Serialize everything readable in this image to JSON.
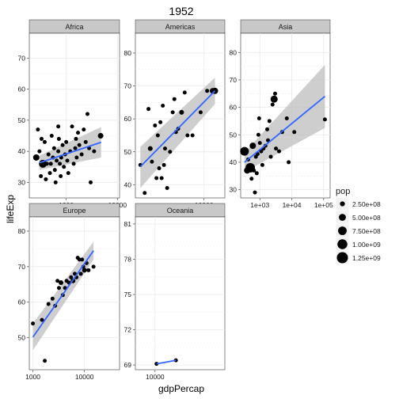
{
  "chart_data": {
    "type": "scatter",
    "title": "1952",
    "xlabel": "gdpPercap",
    "ylabel": "lifeExp",
    "x_scale": "log10",
    "grid": true,
    "legend": {
      "title": "pop",
      "placement": "right",
      "labels": [
        "2.50e+08",
        "5.00e+08",
        "7.50e+08",
        "1.00e+09",
        "1.25e+09"
      ],
      "values": [
        250000000,
        500000000,
        750000000,
        1000000000,
        1250000000
      ]
    },
    "colors": {
      "points": "#000000",
      "fit_line": "#3366FF",
      "ribbon": "#BEBEBE",
      "strip": "#C8C8C8",
      "grid": "#EBEBEB"
    },
    "panels": [
      {
        "name": "Africa",
        "xlim": [
          190,
          11000
        ],
        "ylim": [
          25,
          78
        ],
        "xticks": [
          1000,
          10000
        ],
        "xticklabels": [
          "1000",
          "10000"
        ],
        "yticks": [
          30,
          40,
          50,
          60,
          70
        ],
        "yticklabels": [
          "30",
          "40",
          "50",
          "60",
          "70"
        ],
        "fit": {
          "x": [
            300,
            4800
          ],
          "y": [
            36.3,
            42.9
          ],
          "lower": [
            34.0,
            38.0
          ],
          "upper": [
            38.6,
            47.8
          ]
        },
        "points": [
          [
            260,
            38,
            8
          ],
          [
            300,
            40,
            5
          ],
          [
            320,
            32,
            5
          ],
          [
            350,
            36,
            10
          ],
          [
            380,
            43,
            5
          ],
          [
            400,
            31,
            5
          ],
          [
            420,
            36,
            5
          ],
          [
            450,
            39,
            5
          ],
          [
            480,
            33,
            5
          ],
          [
            500,
            36,
            5
          ],
          [
            520,
            45,
            5
          ],
          [
            550,
            38,
            5
          ],
          [
            580,
            41,
            5
          ],
          [
            600,
            34,
            5
          ],
          [
            620,
            30,
            5
          ],
          [
            650,
            37,
            5
          ],
          [
            700,
            40,
            5
          ],
          [
            720,
            44,
            5
          ],
          [
            750,
            36,
            5
          ],
          [
            780,
            32,
            5
          ],
          [
            800,
            38,
            5
          ],
          [
            850,
            42,
            5
          ],
          [
            900,
            35,
            5
          ],
          [
            950,
            39,
            5
          ],
          [
            1000,
            43,
            5
          ],
          [
            1050,
            37,
            5
          ],
          [
            1100,
            33,
            5
          ],
          [
            1200,
            40,
            5
          ],
          [
            1300,
            48,
            5
          ],
          [
            1400,
            36,
            5
          ],
          [
            1500,
            41,
            5
          ],
          [
            1550,
            44,
            5
          ],
          [
            1600,
            38,
            5
          ],
          [
            1800,
            42,
            5
          ],
          [
            2000,
            39,
            5
          ],
          [
            2200,
            47,
            5
          ],
          [
            2400,
            43,
            5
          ],
          [
            2600,
            52,
            5
          ],
          [
            2800,
            41,
            5
          ],
          [
            3000,
            30,
            5
          ],
          [
            3500,
            40,
            5
          ],
          [
            4700,
            45,
            7
          ],
          [
            280,
            47,
            5
          ],
          [
            330,
            44,
            5
          ],
          [
            700,
            48,
            5
          ],
          [
            1700,
            46,
            5
          ]
        ]
      },
      {
        "name": "Americas",
        "xlim": [
          1200,
          19000
        ],
        "ylim": [
          36,
          86
        ],
        "xticks": [
          10000
        ],
        "xticklabels": [
          "10000"
        ],
        "yticks": [
          40,
          50,
          60,
          70,
          80
        ],
        "yticklabels": [
          "40",
          "50",
          "60",
          "70",
          "80"
        ],
        "fit": {
          "x": [
            1400,
            14000
          ],
          "y": [
            45.5,
            68.5
          ],
          "lower": [
            39.0,
            64.5
          ],
          "upper": [
            51.5,
            72.5
          ]
        },
        "points": [
          [
            1400,
            46,
            5
          ],
          [
            1600,
            37.5,
            5
          ],
          [
            1800,
            63,
            5
          ],
          [
            1900,
            51,
            6
          ],
          [
            2000,
            47,
            5
          ],
          [
            2200,
            58,
            5
          ],
          [
            2300,
            42,
            5
          ],
          [
            2400,
            55,
            5
          ],
          [
            2500,
            45,
            5
          ],
          [
            2600,
            59,
            5
          ],
          [
            2700,
            42,
            5
          ],
          [
            2800,
            64,
            5
          ],
          [
            2900,
            46,
            5
          ],
          [
            3000,
            51,
            5
          ],
          [
            3200,
            39,
            5
          ],
          [
            3500,
            50,
            5
          ],
          [
            3800,
            62,
            5
          ],
          [
            4000,
            66,
            5
          ],
          [
            4200,
            56,
            5
          ],
          [
            4500,
            57,
            5
          ],
          [
            5000,
            62,
            6
          ],
          [
            5500,
            68,
            5
          ],
          [
            6000,
            55,
            5
          ],
          [
            7000,
            55,
            5
          ],
          [
            9000,
            62,
            5
          ],
          [
            11000,
            68.5,
            5
          ],
          [
            13000,
            68.5,
            7
          ],
          [
            14000,
            68.5,
            8
          ]
        ]
      },
      {
        "name": "Asia",
        "xlim": [
          250,
          160000
        ],
        "ylim": [
          27,
          87
        ],
        "xticks": [
          1000,
          10000,
          100000
        ],
        "xticklabels": [
          "1e+03",
          "1e+04",
          "1e+05"
        ],
        "yticks": [
          30,
          40,
          50,
          60,
          70,
          80
        ],
        "yticklabels": [
          "30",
          "40",
          "50",
          "60",
          "70",
          "80"
        ],
        "fit": {
          "x": [
            330,
            110000
          ],
          "y": [
            40.0,
            64.0
          ],
          "lower": [
            36.5,
            52.5
          ],
          "upper": [
            43.5,
            75.5
          ]
        },
        "points": [
          [
            330,
            44,
            11
          ],
          [
            400,
            37,
            8
          ],
          [
            430,
            41,
            5
          ],
          [
            500,
            38,
            12
          ],
          [
            550,
            34,
            5
          ],
          [
            600,
            46,
            8
          ],
          [
            650,
            37,
            5
          ],
          [
            700,
            29,
            5
          ],
          [
            750,
            42,
            5
          ],
          [
            800,
            36,
            5
          ],
          [
            850,
            43,
            5
          ],
          [
            900,
            50,
            5
          ],
          [
            1000,
            47,
            5
          ],
          [
            1100,
            44,
            5
          ],
          [
            1200,
            39,
            5
          ],
          [
            1300,
            45,
            5
          ],
          [
            1500,
            46,
            5
          ],
          [
            1700,
            52,
            5
          ],
          [
            1800,
            48,
            5
          ],
          [
            2000,
            55,
            5
          ],
          [
            2200,
            42,
            5
          ],
          [
            2500,
            61,
            5
          ],
          [
            2800,
            63,
            9
          ],
          [
            3000,
            65,
            5
          ],
          [
            3200,
            45,
            5
          ],
          [
            4000,
            44,
            5
          ],
          [
            5000,
            51,
            5
          ],
          [
            7000,
            56,
            5
          ],
          [
            8000,
            40,
            5
          ],
          [
            12000,
            51,
            5
          ],
          [
            110000,
            55.6,
            5
          ],
          [
            950,
            56,
            5
          ]
        ]
      },
      {
        "name": "Europe",
        "xlim": [
          850,
          48000
        ],
        "ylim": [
          41,
          84
        ],
        "xticks": [
          1000,
          10000
        ],
        "xticklabels": [
          "1000",
          "10000"
        ],
        "yticks": [
          50,
          60,
          70,
          80
        ],
        "yticklabels": [
          "50",
          "60",
          "70",
          "80"
        ],
        "fit": {
          "x": [
            1000,
            15000
          ],
          "y": [
            50.2,
            74.5
          ],
          "lower": [
            46.5,
            72.0
          ],
          "upper": [
            54.0,
            77.0
          ]
        },
        "points": [
          [
            1000,
            54,
            5
          ],
          [
            1500,
            55,
            5
          ],
          [
            1700,
            43.5,
            5
          ],
          [
            2000,
            59.5,
            5
          ],
          [
            2400,
            61,
            5
          ],
          [
            2700,
            59,
            5
          ],
          [
            3000,
            66,
            5
          ],
          [
            3200,
            64,
            5
          ],
          [
            3500,
            65.5,
            6
          ],
          [
            3800,
            62,
            5
          ],
          [
            4200,
            64,
            5
          ],
          [
            4500,
            66,
            5
          ],
          [
            5000,
            65.5,
            5
          ],
          [
            5500,
            67,
            5
          ],
          [
            6000,
            66,
            6
          ],
          [
            6500,
            68,
            5
          ],
          [
            7000,
            67,
            5
          ],
          [
            7400,
            72.5,
            5
          ],
          [
            8000,
            72,
            5
          ],
          [
            8500,
            68,
            5
          ],
          [
            9000,
            72,
            5
          ],
          [
            9500,
            70,
            5
          ],
          [
            10000,
            69,
            6
          ],
          [
            11000,
            71,
            5
          ],
          [
            12000,
            69,
            5
          ],
          [
            15000,
            70,
            5
          ]
        ]
      },
      {
        "name": "Oceania",
        "xlim": [
          9500,
          12000
        ],
        "ylim": [
          68.6,
          81.6
        ],
        "xticks": [
          10000
        ],
        "xticklabels": [
          "10000"
        ],
        "yticks": [
          69,
          72,
          75,
          78,
          81
        ],
        "yticklabels": [
          "69",
          "72",
          "75",
          "78",
          "81"
        ],
        "fit": {
          "x": [
            10040,
            10560
          ],
          "y": [
            69.1,
            69.4
          ],
          "lower": [
            69.1,
            69.4
          ],
          "upper": [
            69.1,
            69.4
          ]
        },
        "points": [
          [
            10040,
            69.1,
            5
          ],
          [
            10560,
            69.4,
            5
          ]
        ]
      }
    ]
  }
}
